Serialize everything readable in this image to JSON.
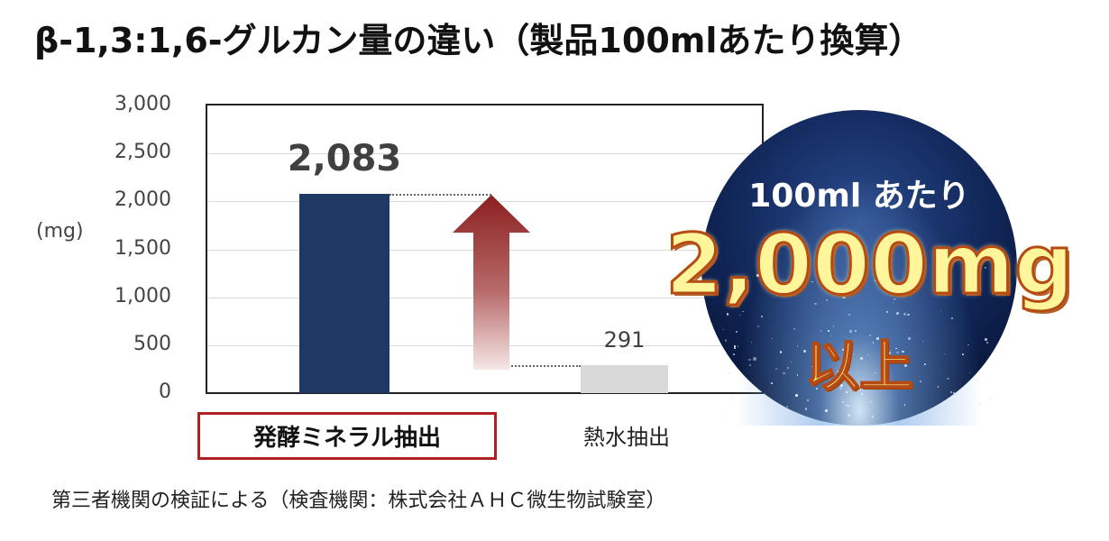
{
  "title": "β-1,3:1,6-グルカン量の違い（製品100mlあたり換算）",
  "chart_data": {
    "type": "bar",
    "categories": [
      "発酵ミネラル抽出",
      "熱水抽出"
    ],
    "values": [
      2083,
      291
    ],
    "value_labels": [
      "2,083",
      "291"
    ],
    "ylabel": "(mg)",
    "ylim": [
      0,
      3000
    ],
    "yticks": [
      "0",
      "500",
      "1,000",
      "1,500",
      "2,000",
      "2,500",
      "3,000"
    ],
    "grid": true,
    "colors": {
      "bar1": "#1f3864",
      "bar2": "#d9d9d9",
      "highlight_border": "#b02020",
      "arrow": "#8b2020"
    }
  },
  "badge": {
    "top_text": "100ml あたり",
    "big_text": "2,000mg",
    "sub_text": "以上"
  },
  "footnote": "第三者機関の検証による（検査機関：株式会社ＡＨＣ微生物試験室）"
}
